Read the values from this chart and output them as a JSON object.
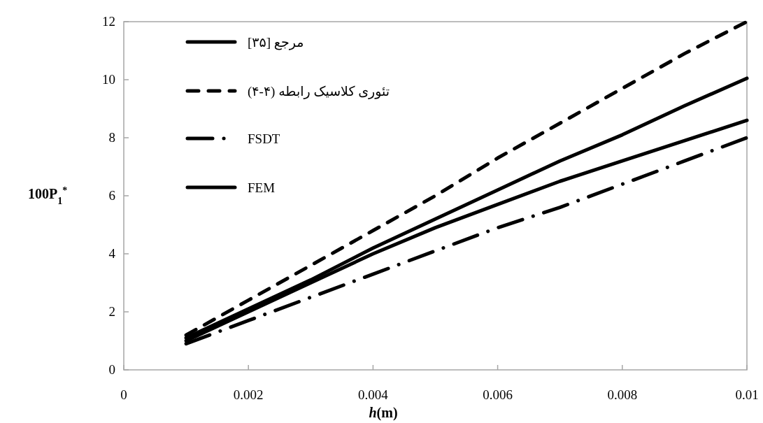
{
  "chart_data": {
    "type": "line",
    "xlabel": "*h*(m)",
    "ylabel": "100P$_{1}$$^{*}$",
    "x": [
      0.001,
      0.002,
      0.003,
      0.004,
      0.005,
      0.006,
      0.007,
      0.008,
      0.009,
      0.01
    ],
    "series": [
      {
        "name": "مرجع [۳۵]",
        "color": "#000000",
        "line_style": "solid",
        "values": [
          1.1,
          2.1,
          3.1,
          4.2,
          5.2,
          6.2,
          7.2,
          8.1,
          9.1,
          10.05
        ]
      },
      {
        "name": "تئوری کلاسیک رابطه (۴-۴)",
        "color": "#000000",
        "line_style": "dashed",
        "values": [
          1.2,
          2.4,
          3.6,
          4.8,
          6.0,
          7.3,
          8.5,
          9.7,
          10.9,
          12.0
        ]
      },
      {
        "name": "FSDT",
        "color": "#000000",
        "line_style": "dashdot",
        "values": [
          0.9,
          1.7,
          2.5,
          3.3,
          4.1,
          4.9,
          5.6,
          6.4,
          7.2,
          8.0
        ]
      },
      {
        "name": "FEM",
        "color": "#000000",
        "line_style": "solid",
        "values": [
          1.0,
          2.0,
          3.0,
          4.0,
          4.9,
          5.7,
          6.5,
          7.2,
          7.9,
          8.6
        ]
      }
    ],
    "xlim": [
      0,
      0.01
    ],
    "ylim": [
      0,
      12
    ],
    "xticks": [
      0,
      0.002,
      0.004,
      0.006,
      0.008,
      0.01
    ],
    "yticks": [
      0,
      2,
      4,
      6,
      8,
      10,
      12
    ],
    "legend": "top left"
  }
}
